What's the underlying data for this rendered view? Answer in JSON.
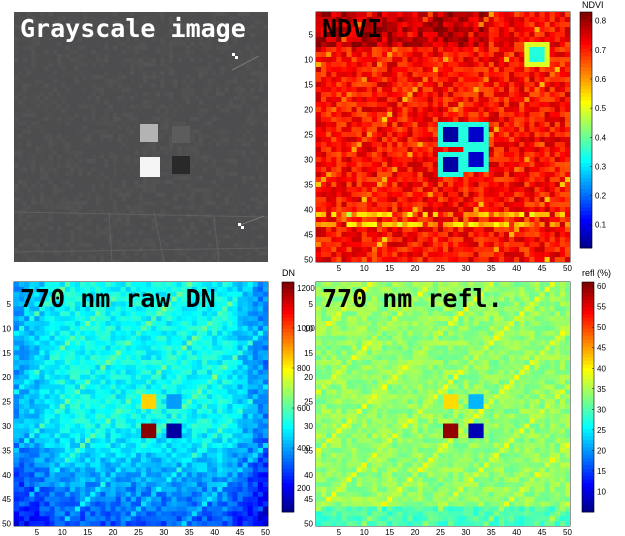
{
  "chart_data": [
    {
      "type": "image",
      "title": "Grayscale image",
      "colormap": "gray",
      "background_level": 0.3,
      "features": {
        "targets": [
          {
            "label": "bright",
            "value": 0.7
          },
          {
            "label": "dark-gray",
            "value": 0.36
          },
          {
            "label": "white",
            "value": 0.96
          },
          {
            "label": "black",
            "value": 0.16
          }
        ]
      }
    },
    {
      "type": "heatmap",
      "title": "NDVI",
      "colormap": "jet",
      "xticks": [
        5,
        10,
        15,
        20,
        25,
        30,
        35,
        40,
        45,
        50
      ],
      "yticks": [
        5,
        10,
        15,
        20,
        25,
        30,
        35,
        40,
        45,
        50
      ],
      "xlim": [
        0.5,
        50.5
      ],
      "ylim": [
        0.5,
        50.5
      ],
      "colorbar": {
        "label": "NDVI",
        "range": [
          0.02,
          0.83
        ],
        "ticks": [
          0.1,
          0.2,
          0.3,
          0.4,
          0.5,
          0.6,
          0.7,
          0.8
        ]
      },
      "background_value": 0.72,
      "features": [
        {
          "x": 27,
          "y": 25,
          "value": 0.05,
          "halo": 0.35
        },
        {
          "x": 32,
          "y": 25,
          "value": 0.08,
          "halo": 0.35
        },
        {
          "x": 27,
          "y": 31,
          "value": 0.05,
          "halo": 0.35
        },
        {
          "x": 32,
          "y": 30,
          "value": 0.08,
          "halo": 0.35
        },
        {
          "x": 44,
          "y": 9,
          "value": 0.35,
          "halo": 0.5
        }
      ]
    },
    {
      "type": "heatmap",
      "title": "770 nm raw DN",
      "colormap": "jet",
      "xticks": [
        5,
        10,
        15,
        20,
        25,
        30,
        35,
        40,
        45,
        50
      ],
      "yticks": [
        5,
        10,
        15,
        20,
        25,
        30,
        35,
        40,
        45,
        50
      ],
      "xlim": [
        0.5,
        50.5
      ],
      "ylim": [
        0.5,
        50.5
      ],
      "colorbar": {
        "label": "DN",
        "range": [
          80,
          1230
        ],
        "ticks": [
          200,
          400,
          600,
          800,
          1000,
          1200
        ]
      },
      "background_value": 520,
      "features": [
        {
          "x": 27,
          "y": 25,
          "value": 850
        },
        {
          "x": 32,
          "y": 25,
          "value": 400
        },
        {
          "x": 27,
          "y": 31,
          "value": 1220
        },
        {
          "x": 32,
          "y": 31,
          "value": 120
        }
      ]
    },
    {
      "type": "heatmap",
      "title": "770 nm refl.",
      "colormap": "jet",
      "xticks": [
        5,
        10,
        15,
        20,
        25,
        30,
        35,
        40,
        45,
        50
      ],
      "yticks": [
        5,
        10,
        15,
        20,
        25,
        30,
        35,
        40,
        45,
        50
      ],
      "xlim": [
        0.5,
        50.5
      ],
      "ylim": [
        0.5,
        50.5
      ],
      "colorbar": {
        "label": "refl (%)",
        "range": [
          5,
          61
        ],
        "ticks": [
          10,
          15,
          20,
          25,
          30,
          35,
          40,
          45,
          50,
          55,
          60
        ]
      },
      "background_value": 34,
      "features": [
        {
          "x": 27,
          "y": 25,
          "value": 42
        },
        {
          "x": 32,
          "y": 25,
          "value": 22
        },
        {
          "x": 27,
          "y": 31,
          "value": 60
        },
        {
          "x": 32,
          "y": 31,
          "value": 8
        }
      ]
    }
  ],
  "panels": {
    "gray_title": "Grayscale image",
    "ndvi_title": "NDVI",
    "dn_title": "770 nm raw DN",
    "refl_title": "770 nm refl.",
    "ndvi_cbar_label": "NDVI",
    "dn_cbar_label": "DN",
    "refl_cbar_label": "refl (%)"
  }
}
